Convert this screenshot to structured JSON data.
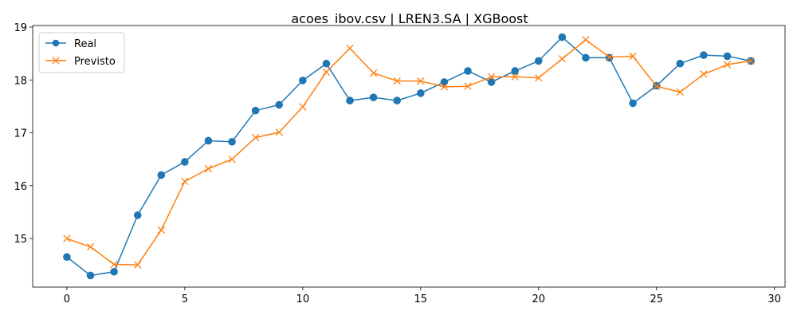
{
  "chart_data": {
    "type": "line",
    "title": "acoes_ibov.csv | LREN3.SA | XGBoost",
    "xlabel": "",
    "ylabel": "",
    "x": [
      0,
      1,
      2,
      3,
      4,
      5,
      6,
      7,
      8,
      9,
      10,
      11,
      12,
      13,
      14,
      15,
      16,
      17,
      18,
      19,
      20,
      21,
      22,
      23,
      24,
      25,
      26,
      27,
      28,
      29
    ],
    "xlim": [
      -1.45,
      30.45
    ],
    "ylim": [
      14.08,
      19.03
    ],
    "xticks": [
      0,
      5,
      10,
      15,
      20,
      25,
      30
    ],
    "yticks": [
      15,
      16,
      17,
      18,
      19
    ],
    "grid": false,
    "legend_position": "upper-left",
    "series": [
      {
        "name": "Real",
        "color": "#1f77b4",
        "marker": "circle",
        "values": [
          14.65,
          14.3,
          14.37,
          15.44,
          16.2,
          16.45,
          16.85,
          16.83,
          17.42,
          17.53,
          17.99,
          18.31,
          17.61,
          17.67,
          17.61,
          17.75,
          17.96,
          18.17,
          17.96,
          18.17,
          18.36,
          18.81,
          18.42,
          18.42,
          17.56,
          17.89,
          18.31,
          18.47,
          18.45,
          18.36
        ]
      },
      {
        "name": "Previsto",
        "color": "#ff7f0e",
        "marker": "x",
        "values": [
          15.0,
          14.84,
          14.51,
          14.5,
          15.16,
          16.08,
          16.32,
          16.5,
          16.91,
          17.01,
          17.49,
          18.15,
          18.6,
          18.13,
          17.98,
          17.98,
          17.87,
          17.88,
          18.06,
          18.06,
          18.04,
          18.4,
          18.76,
          18.43,
          18.45,
          17.88,
          17.77,
          18.11,
          18.29,
          18.36
        ]
      }
    ]
  }
}
